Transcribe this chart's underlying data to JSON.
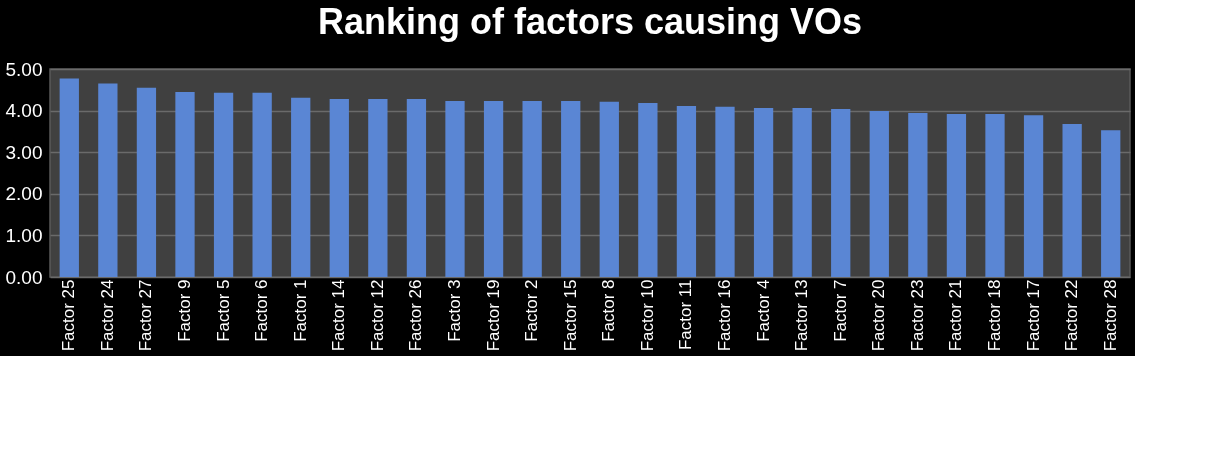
{
  "chart_data": {
    "type": "bar",
    "title": "Ranking of factors causing  VOs",
    "categories": [
      "Factor 25",
      "Factor 24",
      "Factor 27",
      "Factor 9",
      "Factor 5",
      "Factor 6",
      "Factor 1",
      "Factor 14",
      "Factor 12",
      "Factor 26",
      "Factor 3",
      "Factor 19",
      "Factor 2",
      "Factor 15",
      "Factor 8",
      "Factor 10",
      "Factor 11",
      "Factor 16",
      "Factor 4",
      "Factor 13",
      "Factor 7",
      "Factor 20",
      "Factor 23",
      "Factor 21",
      "Factor 18",
      "Factor 17",
      "Factor 22",
      "Factor 28"
    ],
    "values": [
      4.77,
      4.65,
      4.55,
      4.45,
      4.43,
      4.43,
      4.31,
      4.28,
      4.28,
      4.28,
      4.23,
      4.23,
      4.23,
      4.23,
      4.21,
      4.18,
      4.11,
      4.09,
      4.06,
      4.06,
      4.04,
      3.99,
      3.94,
      3.92,
      3.92,
      3.89,
      3.68,
      3.53
    ],
    "color": "#5a86d4",
    "ylim": [
      0,
      5
    ],
    "yticks": [
      {
        "value": 0,
        "label": "0.00"
      },
      {
        "value": 1,
        "label": "1.00"
      },
      {
        "value": 2,
        "label": "2.00"
      },
      {
        "value": 3,
        "label": "3.00"
      },
      {
        "value": 4,
        "label": "4.00"
      },
      {
        "value": 5,
        "label": "5.00"
      }
    ],
    "grid": "y"
  }
}
